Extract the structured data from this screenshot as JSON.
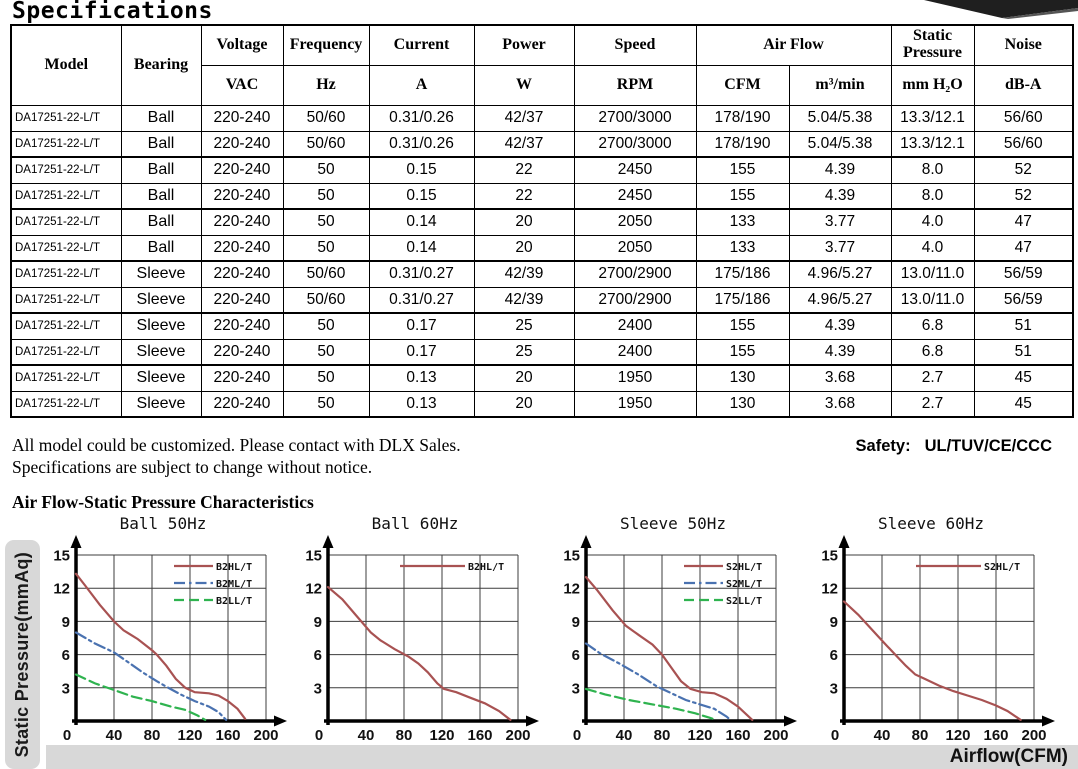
{
  "page": {
    "title": "Specifications",
    "notes": [
      "All model could be customized. Please contact with DLX Sales.",
      "Specifications are subject to change without notice."
    ],
    "safety_label": "Safety:",
    "safety_value": "UL/TUV/CE/CCC",
    "section_title": "Air Flow-Static Pressure Characteristics",
    "y_axis_label": "Static Pressure(mmAq)",
    "x_axis_label": "Airflow(CFM)"
  },
  "table": {
    "header": {
      "model": "Model",
      "bearing": "Bearing",
      "voltage": "Voltage",
      "voltage_unit": "VAC",
      "frequency": "Frequency",
      "frequency_unit": "Hz",
      "current": "Current",
      "current_unit": "A",
      "power": "Power",
      "power_unit": "W",
      "speed": "Speed",
      "speed_unit": "RPM",
      "airflow": "Air Flow",
      "airflow_unit_1": "CFM",
      "airflow_unit_2": "m³/min",
      "static_pressure": "Static Pressure",
      "static_pressure_unit": "mm H₂O",
      "noise": "Noise",
      "noise_unit": "dB-A"
    },
    "rows": [
      [
        "DA17251-22-L/T",
        "Ball",
        "220-240",
        "50/60",
        "0.31/0.26",
        "42/37",
        "2700/3000",
        "178/190",
        "5.04/5.38",
        "13.3/12.1",
        "56/60"
      ],
      [
        "DA17251-22-L/T",
        "Ball",
        "220-240",
        "50/60",
        "0.31/0.26",
        "42/37",
        "2700/3000",
        "178/190",
        "5.04/5.38",
        "13.3/12.1",
        "56/60"
      ],
      [
        "DA17251-22-L/T",
        "Ball",
        "220-240",
        "50",
        "0.15",
        "22",
        "2450",
        "155",
        "4.39",
        "8.0",
        "52"
      ],
      [
        "DA17251-22-L/T",
        "Ball",
        "220-240",
        "50",
        "0.15",
        "22",
        "2450",
        "155",
        "4.39",
        "8.0",
        "52"
      ],
      [
        "DA17251-22-L/T",
        "Ball",
        "220-240",
        "50",
        "0.14",
        "20",
        "2050",
        "133",
        "3.77",
        "4.0",
        "47"
      ],
      [
        "DA17251-22-L/T",
        "Ball",
        "220-240",
        "50",
        "0.14",
        "20",
        "2050",
        "133",
        "3.77",
        "4.0",
        "47"
      ],
      [
        "DA17251-22-L/T",
        "Sleeve",
        "220-240",
        "50/60",
        "0.31/0.27",
        "42/39",
        "2700/2900",
        "175/186",
        "4.96/5.27",
        "13.0/11.0",
        "56/59"
      ],
      [
        "DA17251-22-L/T",
        "Sleeve",
        "220-240",
        "50/60",
        "0.31/0.27",
        "42/39",
        "2700/2900",
        "175/186",
        "4.96/5.27",
        "13.0/11.0",
        "56/59"
      ],
      [
        "DA17251-22-L/T",
        "Sleeve",
        "220-240",
        "50",
        "0.17",
        "25",
        "2400",
        "155",
        "4.39",
        "6.8",
        "51"
      ],
      [
        "DA17251-22-L/T",
        "Sleeve",
        "220-240",
        "50",
        "0.17",
        "25",
        "2400",
        "155",
        "4.39",
        "6.8",
        "51"
      ],
      [
        "DA17251-22-L/T",
        "Sleeve",
        "220-240",
        "50",
        "0.13",
        "20",
        "1950",
        "130",
        "3.68",
        "2.7",
        "45"
      ],
      [
        "DA17251-22-L/T",
        "Sleeve",
        "220-240",
        "50",
        "0.13",
        "20",
        "1950",
        "130",
        "3.68",
        "2.7",
        "45"
      ]
    ]
  },
  "chart_data": [
    {
      "type": "line",
      "title": "Ball 50Hz",
      "xlabel": "Airflow(CFM)",
      "ylabel": "Static Pressure(mmAq)",
      "xlim": [
        0,
        200
      ],
      "ylim": [
        0,
        15
      ],
      "xticks": [
        0,
        40,
        80,
        120,
        160,
        200
      ],
      "yticks": [
        3,
        6,
        9,
        12,
        15
      ],
      "grid": true,
      "legend_position": "top-right",
      "series": [
        {
          "name": "B2HL/T",
          "color": "#a85252",
          "style": "solid",
          "points": [
            [
              0,
              13.3
            ],
            [
              10,
              12.2
            ],
            [
              25,
              10.5
            ],
            [
              40,
              9.0
            ],
            [
              50,
              8.2
            ],
            [
              65,
              7.4
            ],
            [
              80,
              6.4
            ],
            [
              85,
              6.0
            ],
            [
              95,
              5.0
            ],
            [
              105,
              3.8
            ],
            [
              115,
              3.0
            ],
            [
              125,
              2.6
            ],
            [
              140,
              2.5
            ],
            [
              150,
              2.3
            ],
            [
              160,
              1.8
            ],
            [
              170,
              1.1
            ],
            [
              178,
              0.2
            ]
          ]
        },
        {
          "name": "B2ML/T",
          "color": "#4a72b0",
          "style": "dashdot",
          "points": [
            [
              0,
              8.0
            ],
            [
              20,
              7.0
            ],
            [
              40,
              6.2
            ],
            [
              55,
              5.3
            ],
            [
              70,
              4.4
            ],
            [
              85,
              3.6
            ],
            [
              95,
              3.1
            ],
            [
              110,
              2.4
            ],
            [
              125,
              1.8
            ],
            [
              140,
              1.3
            ],
            [
              150,
              0.8
            ],
            [
              158,
              0.1
            ]
          ]
        },
        {
          "name": "B2LL/T",
          "color": "#2fb34f",
          "style": "dash",
          "points": [
            [
              0,
              4.2
            ],
            [
              20,
              3.4
            ],
            [
              40,
              2.8
            ],
            [
              60,
              2.2
            ],
            [
              80,
              1.8
            ],
            [
              100,
              1.3
            ],
            [
              115,
              1.0
            ],
            [
              128,
              0.5
            ],
            [
              136,
              0.1
            ]
          ]
        }
      ]
    },
    {
      "type": "line",
      "title": "Ball 60Hz",
      "xlabel": "Airflow(CFM)",
      "ylabel": "Static Pressure(mmAq)",
      "xlim": [
        0,
        200
      ],
      "ylim": [
        0,
        15
      ],
      "xticks": [
        0,
        40,
        80,
        120,
        160,
        200
      ],
      "yticks": [
        3,
        6,
        9,
        12,
        15
      ],
      "grid": true,
      "legend_position": "top-right",
      "series": [
        {
          "name": "B2HL/T",
          "color": "#a85252",
          "style": "solid",
          "points": [
            [
              0,
              12.1
            ],
            [
              15,
              11.0
            ],
            [
              30,
              9.5
            ],
            [
              45,
              8.0
            ],
            [
              55,
              7.3
            ],
            [
              70,
              6.5
            ],
            [
              85,
              5.8
            ],
            [
              95,
              5.2
            ],
            [
              105,
              4.4
            ],
            [
              115,
              3.4
            ],
            [
              122,
              2.9
            ],
            [
              135,
              2.6
            ],
            [
              150,
              2.1
            ],
            [
              165,
              1.6
            ],
            [
              180,
              0.9
            ],
            [
              192,
              0.1
            ]
          ]
        }
      ]
    },
    {
      "type": "line",
      "title": "Sleeve 50Hz",
      "xlabel": "Airflow(CFM)",
      "ylabel": "Static Pressure(mmAq)",
      "xlim": [
        0,
        200
      ],
      "ylim": [
        0,
        15
      ],
      "xticks": [
        0,
        40,
        80,
        120,
        160,
        200
      ],
      "yticks": [
        3,
        6,
        9,
        12,
        15
      ],
      "grid": true,
      "legend_position": "top-right",
      "series": [
        {
          "name": "S2HL/T",
          "color": "#a85252",
          "style": "solid",
          "points": [
            [
              0,
              13.0
            ],
            [
              12,
              11.8
            ],
            [
              28,
              10.0
            ],
            [
              42,
              8.6
            ],
            [
              55,
              7.8
            ],
            [
              70,
              6.9
            ],
            [
              80,
              6.0
            ],
            [
              90,
              4.8
            ],
            [
              100,
              3.6
            ],
            [
              110,
              2.9
            ],
            [
              122,
              2.6
            ],
            [
              135,
              2.5
            ],
            [
              148,
              2.0
            ],
            [
              160,
              1.3
            ],
            [
              175,
              0.1
            ]
          ]
        },
        {
          "name": "S2ML/T",
          "color": "#4a72b0",
          "style": "dashdot",
          "points": [
            [
              0,
              7.0
            ],
            [
              15,
              6.1
            ],
            [
              35,
              5.2
            ],
            [
              55,
              4.2
            ],
            [
              75,
              3.1
            ],
            [
              90,
              2.5
            ],
            [
              105,
              1.9
            ],
            [
              120,
              1.5
            ],
            [
              135,
              1.1
            ],
            [
              148,
              0.4
            ],
            [
              152,
              0.1
            ]
          ]
        },
        {
          "name": "S2LL/T",
          "color": "#2fb34f",
          "style": "dash",
          "points": [
            [
              0,
              2.9
            ],
            [
              20,
              2.4
            ],
            [
              45,
              1.9
            ],
            [
              70,
              1.5
            ],
            [
              95,
              1.1
            ],
            [
              115,
              0.7
            ],
            [
              130,
              0.3
            ],
            [
              137,
              0.1
            ]
          ]
        }
      ]
    },
    {
      "type": "line",
      "title": "Sleeve 60Hz",
      "xlabel": "Airflow(CFM)",
      "ylabel": "Static Pressure(mmAq)",
      "xlim": [
        0,
        200
      ],
      "ylim": [
        0,
        15
      ],
      "xticks": [
        0,
        40,
        80,
        120,
        160,
        200
      ],
      "yticks": [
        3,
        6,
        9,
        12,
        15
      ],
      "grid": true,
      "legend_position": "top-right",
      "series": [
        {
          "name": "S2HL/T",
          "color": "#a85252",
          "style": "solid",
          "points": [
            [
              0,
              10.8
            ],
            [
              15,
              9.6
            ],
            [
              30,
              8.2
            ],
            [
              45,
              6.8
            ],
            [
              55,
              5.9
            ],
            [
              65,
              5.0
            ],
            [
              75,
              4.2
            ],
            [
              85,
              3.8
            ],
            [
              100,
              3.2
            ],
            [
              115,
              2.7
            ],
            [
              130,
              2.3
            ],
            [
              145,
              1.9
            ],
            [
              160,
              1.4
            ],
            [
              172,
              0.9
            ],
            [
              186,
              0.1
            ]
          ]
        }
      ]
    }
  ]
}
